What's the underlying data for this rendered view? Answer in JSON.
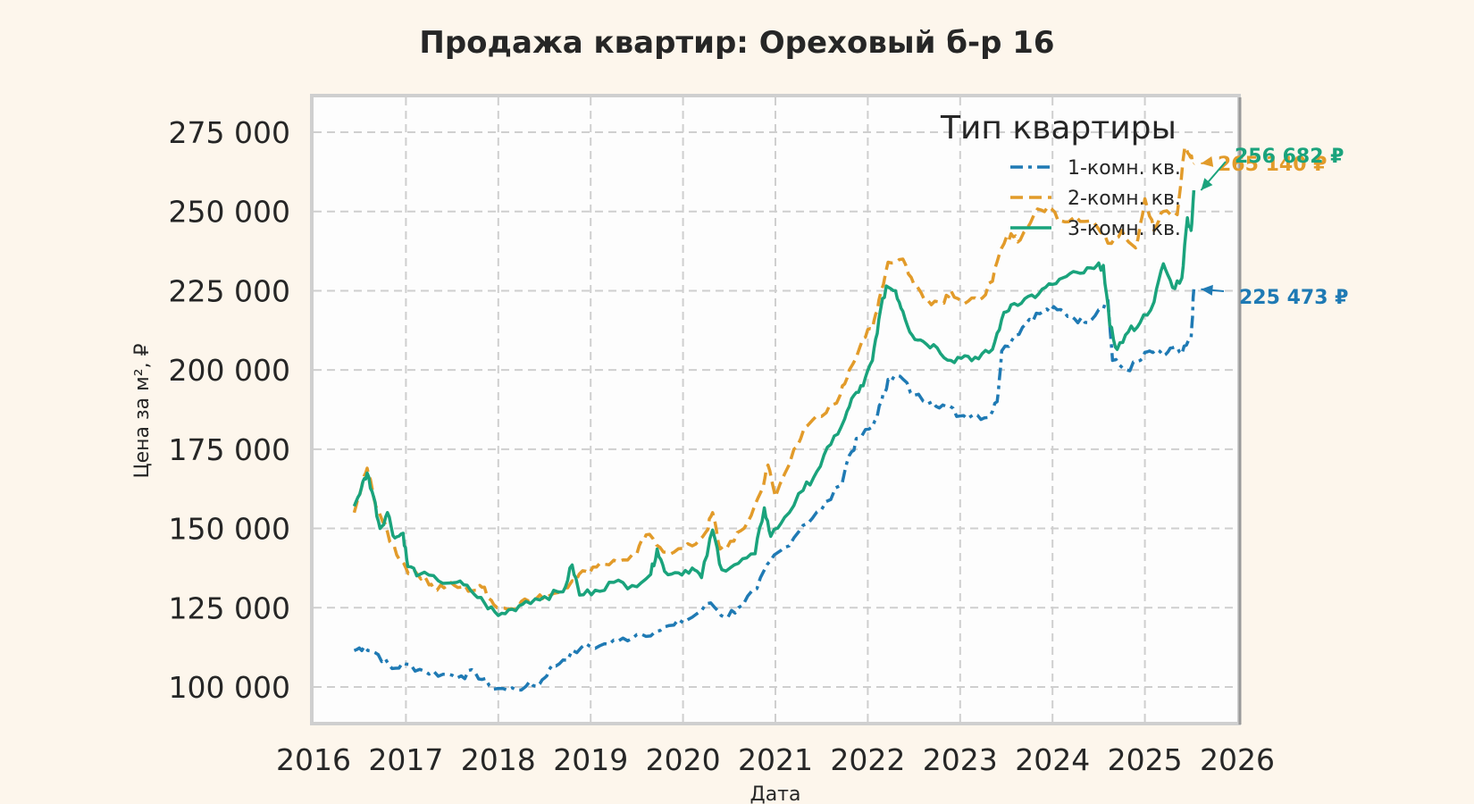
{
  "chart_data": {
    "type": "line",
    "title": "Продажа квартир: Ореховый б-р 16",
    "xlabel": "Дата",
    "ylabel": "Цена за м², ₽",
    "xlim": [
      2016,
      2026
    ],
    "ylim": [
      89000,
      286000
    ],
    "x_ticks": [
      2016,
      2017,
      2018,
      2019,
      2020,
      2021,
      2022,
      2023,
      2024,
      2025,
      2026
    ],
    "x_tick_labels": [
      "2016",
      "2017",
      "2018",
      "2019",
      "2020",
      "2021",
      "2022",
      "2023",
      "2024",
      "2025",
      "2026"
    ],
    "y_ticks": [
      100000,
      125000,
      150000,
      175000,
      200000,
      225000,
      250000,
      275000
    ],
    "y_tick_labels": [
      "100 000",
      "125 000",
      "150 000",
      "175 000",
      "200 000",
      "225 000",
      "250 000",
      "275 000"
    ],
    "grid": true,
    "legend": {
      "title": "Тип квартиры",
      "position": "top-right"
    },
    "series": [
      {
        "name": "1-комн. кв.",
        "color": "#1f7ab4",
        "dash": "dashdot",
        "end_label": "225 473 ₽",
        "end_value": 225473,
        "points": [
          [
            2016.44,
            111500
          ],
          [
            2016.55,
            112800
          ],
          [
            2016.7,
            110200
          ],
          [
            2016.85,
            105800
          ],
          [
            2017.0,
            107200
          ],
          [
            2017.2,
            105000
          ],
          [
            2017.4,
            104000
          ],
          [
            2017.6,
            103500
          ],
          [
            2017.75,
            104500
          ],
          [
            2017.9,
            100500
          ],
          [
            2018.1,
            99000
          ],
          [
            2018.3,
            100200
          ],
          [
            2018.45,
            101000
          ],
          [
            2018.55,
            105500
          ],
          [
            2018.7,
            108500
          ],
          [
            2018.9,
            112500
          ],
          [
            2019.1,
            113000
          ],
          [
            2019.3,
            114500
          ],
          [
            2019.5,
            116500
          ],
          [
            2019.7,
            117500
          ],
          [
            2019.9,
            119500
          ],
          [
            2020.1,
            122000
          ],
          [
            2020.3,
            126500
          ],
          [
            2020.45,
            122000
          ],
          [
            2020.6,
            125000
          ],
          [
            2020.8,
            131000
          ],
          [
            2020.95,
            140000
          ],
          [
            2021.1,
            144000
          ],
          [
            2021.3,
            151000
          ],
          [
            2021.5,
            156000
          ],
          [
            2021.7,
            163500
          ],
          [
            2021.8,
            173000
          ],
          [
            2021.9,
            178500
          ],
          [
            2022.05,
            182000
          ],
          [
            2022.15,
            190000
          ],
          [
            2022.22,
            197000
          ],
          [
            2022.35,
            198000
          ],
          [
            2022.5,
            192000
          ],
          [
            2022.7,
            190000
          ],
          [
            2022.85,
            188500
          ],
          [
            2023.0,
            185500
          ],
          [
            2023.15,
            186000
          ],
          [
            2023.3,
            185000
          ],
          [
            2023.4,
            190000
          ],
          [
            2023.45,
            206000
          ],
          [
            2023.6,
            211000
          ],
          [
            2023.75,
            216000
          ],
          [
            2023.9,
            218500
          ],
          [
            2024.05,
            219000
          ],
          [
            2024.2,
            217000
          ],
          [
            2024.35,
            215000
          ],
          [
            2024.5,
            219000
          ],
          [
            2024.6,
            222000
          ],
          [
            2024.65,
            203000
          ],
          [
            2024.8,
            200000
          ],
          [
            2024.95,
            203000
          ],
          [
            2025.05,
            206000
          ],
          [
            2025.2,
            204500
          ],
          [
            2025.3,
            207000
          ],
          [
            2025.4,
            205000
          ],
          [
            2025.5,
            210000
          ],
          [
            2025.53,
            225473
          ]
        ]
      },
      {
        "name": "2-комн. кв.",
        "color": "#e29b2a",
        "dash": "dashed",
        "end_label": "265 140 ₽",
        "end_value": 265140,
        "points": [
          [
            2016.44,
            155000
          ],
          [
            2016.52,
            163000
          ],
          [
            2016.58,
            169000
          ],
          [
            2016.65,
            160000
          ],
          [
            2016.75,
            152000
          ],
          [
            2016.85,
            145000
          ],
          [
            2016.95,
            140000
          ],
          [
            2017.05,
            136000
          ],
          [
            2017.2,
            135000
          ],
          [
            2017.3,
            131000
          ],
          [
            2017.45,
            132000
          ],
          [
            2017.6,
            131500
          ],
          [
            2017.75,
            130500
          ],
          [
            2017.85,
            131500
          ],
          [
            2017.95,
            126000
          ],
          [
            2018.1,
            124500
          ],
          [
            2018.25,
            127000
          ],
          [
            2018.4,
            127500
          ],
          [
            2018.6,
            129500
          ],
          [
            2018.8,
            133500
          ],
          [
            2018.95,
            136500
          ],
          [
            2019.1,
            139000
          ],
          [
            2019.3,
            139500
          ],
          [
            2019.5,
            142000
          ],
          [
            2019.6,
            148000
          ],
          [
            2019.75,
            144000
          ],
          [
            2019.9,
            142500
          ],
          [
            2020.1,
            144500
          ],
          [
            2020.25,
            149000
          ],
          [
            2020.32,
            155000
          ],
          [
            2020.4,
            143500
          ],
          [
            2020.55,
            146000
          ],
          [
            2020.7,
            152000
          ],
          [
            2020.85,
            162000
          ],
          [
            2020.92,
            170000
          ],
          [
            2021.0,
            160000
          ],
          [
            2021.2,
            175000
          ],
          [
            2021.35,
            182500
          ],
          [
            2021.55,
            186500
          ],
          [
            2021.7,
            192000
          ],
          [
            2021.8,
            200000
          ],
          [
            2021.95,
            210000
          ],
          [
            2022.05,
            213000
          ],
          [
            2022.12,
            222000
          ],
          [
            2022.22,
            234000
          ],
          [
            2022.38,
            235000
          ],
          [
            2022.5,
            227000
          ],
          [
            2022.65,
            222000
          ],
          [
            2022.8,
            221500
          ],
          [
            2022.9,
            225000
          ],
          [
            2023.05,
            221000
          ],
          [
            2023.2,
            222000
          ],
          [
            2023.35,
            228000
          ],
          [
            2023.45,
            238500
          ],
          [
            2023.55,
            243000
          ],
          [
            2023.65,
            241000
          ],
          [
            2023.8,
            249000
          ],
          [
            2023.95,
            251500
          ],
          [
            2024.1,
            247000
          ],
          [
            2024.25,
            248500
          ],
          [
            2024.45,
            246500
          ],
          [
            2024.6,
            240000
          ],
          [
            2024.75,
            244000
          ],
          [
            2024.9,
            238500
          ],
          [
            2025.0,
            254000
          ],
          [
            2025.1,
            244000
          ],
          [
            2025.2,
            250000
          ],
          [
            2025.35,
            249000
          ],
          [
            2025.43,
            270000
          ],
          [
            2025.48,
            268000
          ],
          [
            2025.53,
            265140
          ]
        ]
      },
      {
        "name": "3-комн. кв.",
        "color": "#1aa37c",
        "dash": "solid",
        "end_label": "256 682 ₽",
        "end_value": 256682,
        "points": [
          [
            2016.44,
            157000
          ],
          [
            2016.52,
            163000
          ],
          [
            2016.58,
            167500
          ],
          [
            2016.65,
            160000
          ],
          [
            2016.72,
            150000
          ],
          [
            2016.8,
            155000
          ],
          [
            2016.88,
            147000
          ],
          [
            2016.97,
            148500
          ],
          [
            2017.02,
            138000
          ],
          [
            2017.15,
            135500
          ],
          [
            2017.35,
            133500
          ],
          [
            2017.55,
            133000
          ],
          [
            2017.7,
            130500
          ],
          [
            2017.85,
            126500
          ],
          [
            2018.0,
            122500
          ],
          [
            2018.15,
            124500
          ],
          [
            2018.3,
            127000
          ],
          [
            2018.5,
            128500
          ],
          [
            2018.7,
            130000
          ],
          [
            2018.8,
            138500
          ],
          [
            2018.88,
            129000
          ],
          [
            2019.05,
            130500
          ],
          [
            2019.25,
            133000
          ],
          [
            2019.45,
            132000
          ],
          [
            2019.65,
            135500
          ],
          [
            2019.72,
            143500
          ],
          [
            2019.8,
            136500
          ],
          [
            2019.95,
            136000
          ],
          [
            2020.1,
            137500
          ],
          [
            2020.2,
            134500
          ],
          [
            2020.32,
            149500
          ],
          [
            2020.42,
            137000
          ],
          [
            2020.6,
            139000
          ],
          [
            2020.78,
            142000
          ],
          [
            2020.88,
            156500
          ],
          [
            2020.95,
            147500
          ],
          [
            2021.1,
            153500
          ],
          [
            2021.3,
            162000
          ],
          [
            2021.45,
            168000
          ],
          [
            2021.6,
            176500
          ],
          [
            2021.75,
            184500
          ],
          [
            2021.85,
            192000
          ],
          [
            2021.95,
            195000
          ],
          [
            2022.05,
            203000
          ],
          [
            2022.12,
            216000
          ],
          [
            2022.2,
            226500
          ],
          [
            2022.3,
            225000
          ],
          [
            2022.38,
            218500
          ],
          [
            2022.48,
            211000
          ],
          [
            2022.6,
            209000
          ],
          [
            2022.75,
            207000
          ],
          [
            2022.9,
            203000
          ],
          [
            2023.05,
            204500
          ],
          [
            2023.2,
            203500
          ],
          [
            2023.35,
            206500
          ],
          [
            2023.45,
            216000
          ],
          [
            2023.55,
            220500
          ],
          [
            2023.7,
            222500
          ],
          [
            2023.85,
            224000
          ],
          [
            2024.0,
            227000
          ],
          [
            2024.15,
            229500
          ],
          [
            2024.3,
            230500
          ],
          [
            2024.45,
            232000
          ],
          [
            2024.55,
            233000
          ],
          [
            2024.62,
            214000
          ],
          [
            2024.7,
            206500
          ],
          [
            2024.82,
            212000
          ],
          [
            2024.95,
            215000
          ],
          [
            2025.1,
            221500
          ],
          [
            2025.2,
            233500
          ],
          [
            2025.3,
            226000
          ],
          [
            2025.4,
            229000
          ],
          [
            2025.46,
            248000
          ],
          [
            2025.5,
            244000
          ],
          [
            2025.53,
            256682
          ]
        ]
      }
    ]
  }
}
